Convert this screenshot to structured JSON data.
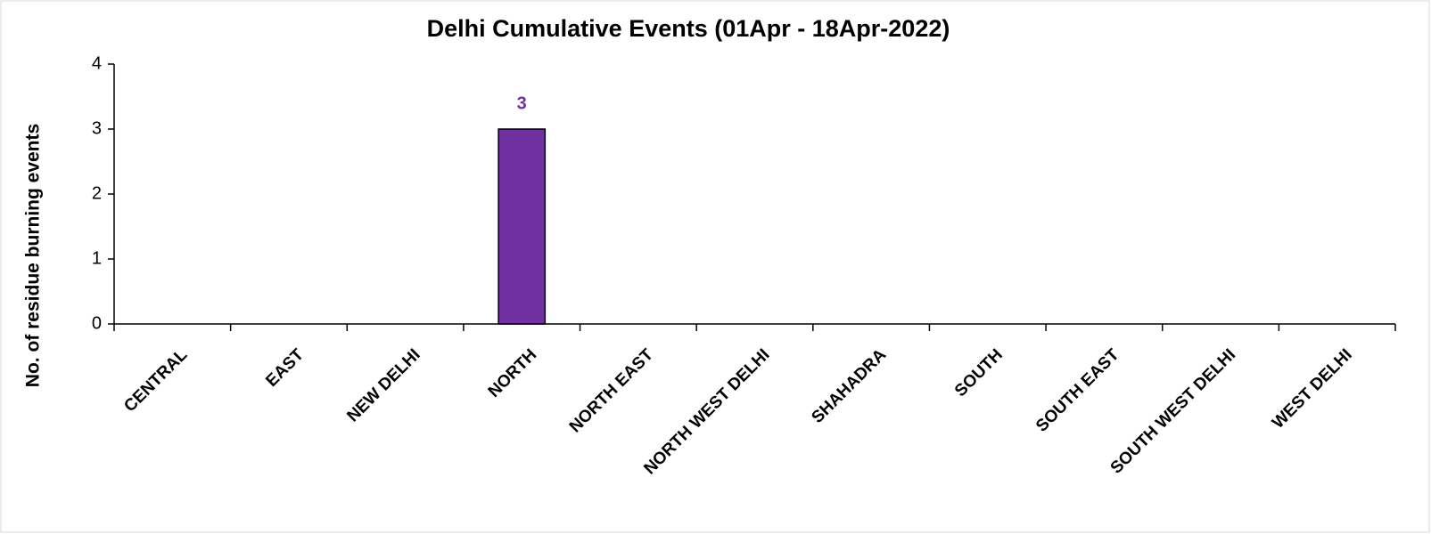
{
  "chart_data": {
    "type": "bar",
    "title": "Delhi Cumulative Events (01Apr - 18Apr-2022)",
    "y_label": "No. of residue burning events",
    "categories": [
      "CENTRAL",
      "EAST",
      "NEW DELHI",
      "NORTH",
      "NORTH EAST",
      "NORTH WEST DELHI",
      "SHAHADRA",
      "SOUTH",
      "SOUTH EAST",
      "SOUTH WEST DELHI",
      "WEST DELHI"
    ],
    "values": [
      0,
      0,
      0,
      3,
      0,
      0,
      0,
      0,
      0,
      0,
      0
    ],
    "color": "#7030a0",
    "ylim": [
      0,
      4
    ],
    "yticks": [
      0,
      1,
      2,
      3,
      4
    ],
    "grid": false
  }
}
